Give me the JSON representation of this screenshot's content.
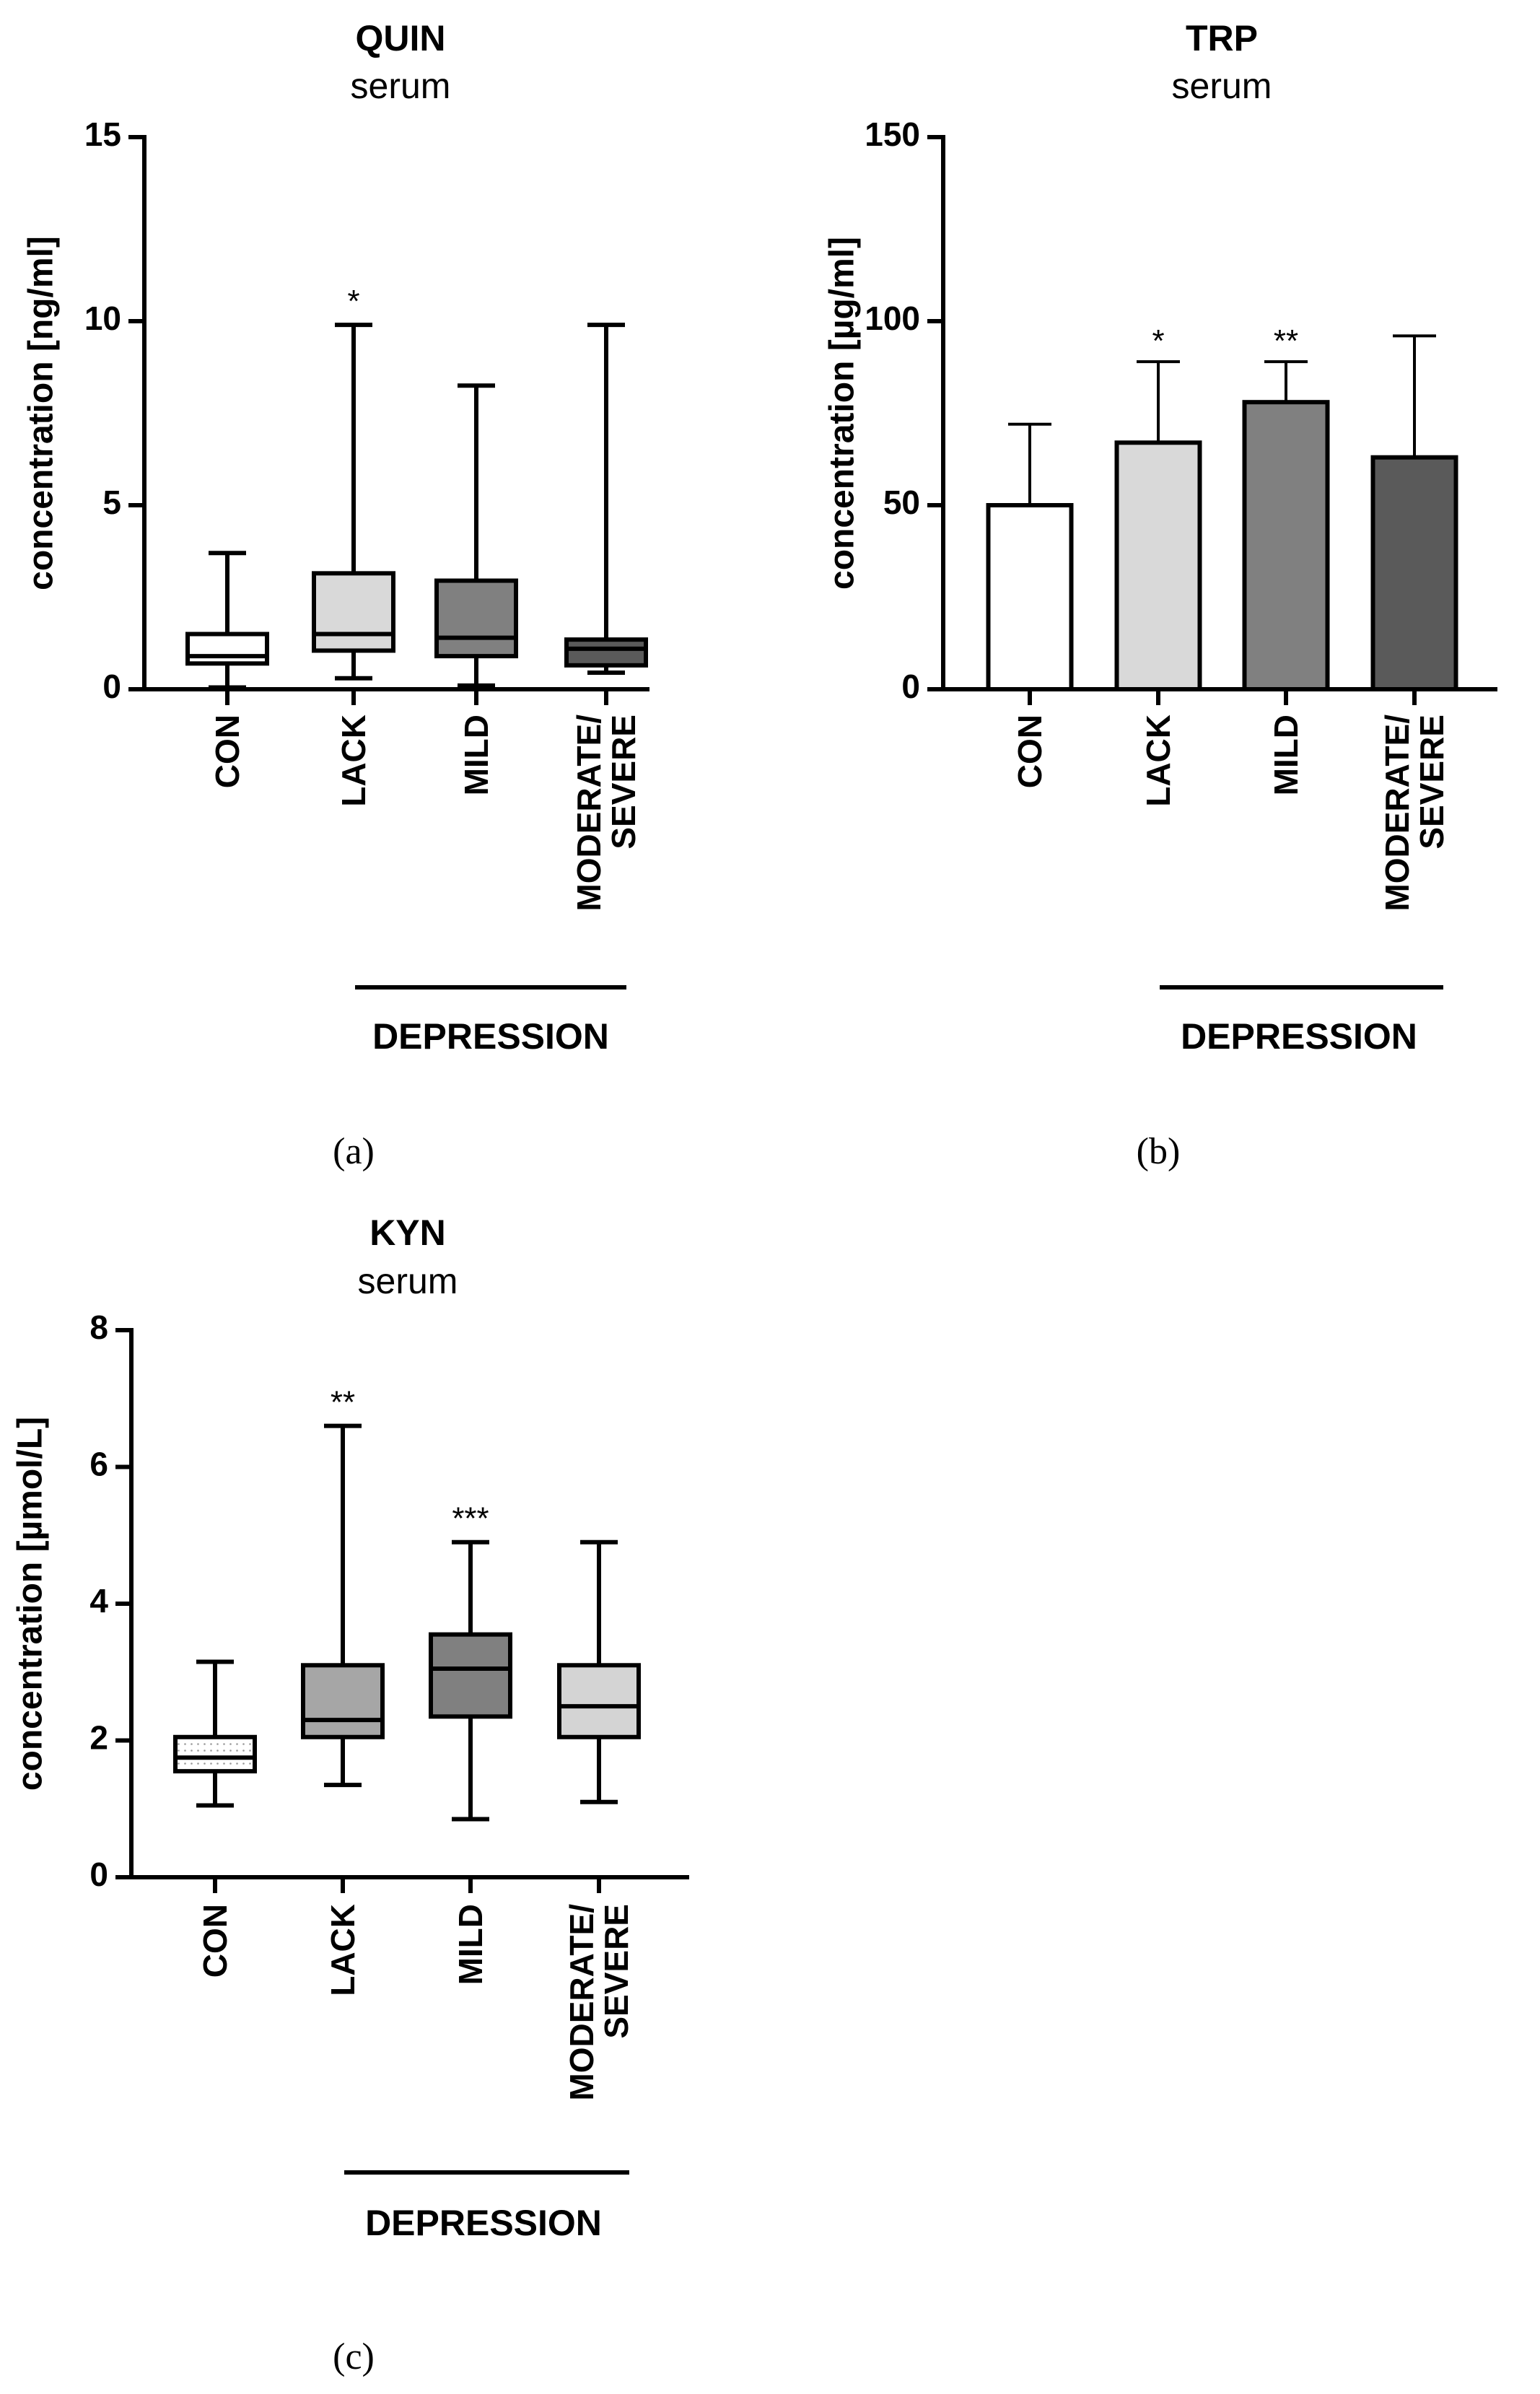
{
  "figure": {
    "panels": [
      {
        "id": "a",
        "label": "(a)"
      },
      {
        "id": "b",
        "label": "(b)"
      },
      {
        "id": "c",
        "label": "(c)"
      }
    ]
  },
  "chart_data": [
    {
      "panel": "a",
      "type": "box",
      "title": "QUIN",
      "subtitle": "serum",
      "ylabel": "concentration [ng/ml]",
      "ylim": [
        0,
        15
      ],
      "yticks": [
        0,
        5,
        10,
        15
      ],
      "group_label": "DEPRESSION",
      "grouped_categories": [
        1,
        3
      ],
      "categories": [
        "CON",
        "LACK",
        "MILD",
        "MODERATE/\nSEVERE"
      ],
      "series": [
        {
          "name": "CON",
          "min": 0.05,
          "q1": 0.7,
          "median": 0.9,
          "q3": 1.5,
          "max": 3.7,
          "color": "#ffffff",
          "annotation": ""
        },
        {
          "name": "LACK",
          "min": 0.3,
          "q1": 1.05,
          "median": 1.5,
          "q3": 3.15,
          "max": 9.9,
          "color": "#d9d9d9",
          "annotation": "*"
        },
        {
          "name": "MILD",
          "min": 0.1,
          "q1": 0.9,
          "median": 1.4,
          "q3": 2.95,
          "max": 8.25,
          "color": "#808080",
          "annotation": ""
        },
        {
          "name": "MODERATE/SEVERE",
          "min": 0.45,
          "q1": 0.65,
          "median": 1.1,
          "q3": 1.35,
          "max": 9.9,
          "color": "#5a5a5a",
          "annotation": ""
        }
      ]
    },
    {
      "panel": "b",
      "type": "bar",
      "title": "TRP",
      "subtitle": "serum",
      "ylabel": "concentration [µg/ml]",
      "ylim": [
        0,
        150
      ],
      "yticks": [
        0,
        50,
        100,
        150
      ],
      "group_label": "DEPRESSION",
      "grouped_categories": [
        1,
        3
      ],
      "categories": [
        "CON",
        "LACK",
        "MILD",
        "MODERATE/\nSEVERE"
      ],
      "series": [
        {
          "name": "CON",
          "value": 50,
          "error": 72,
          "color": "#ffffff",
          "annotation": ""
        },
        {
          "name": "LACK",
          "value": 67,
          "error": 89,
          "color": "#d9d9d9",
          "annotation": "*"
        },
        {
          "name": "MILD",
          "value": 78,
          "error": 89,
          "color": "#808080",
          "annotation": "**"
        },
        {
          "name": "MODERATE/SEVERE",
          "value": 63,
          "error": 96,
          "color": "#5a5a5a",
          "annotation": ""
        }
      ]
    },
    {
      "panel": "c",
      "type": "box",
      "title": "KYN",
      "subtitle": "serum",
      "ylabel": "concentration [µmol/L]",
      "ylim": [
        0,
        8
      ],
      "yticks": [
        0,
        2,
        4,
        6,
        8
      ],
      "group_label": "DEPRESSION",
      "grouped_categories": [
        1,
        3
      ],
      "categories": [
        "CON",
        "LACK",
        "MILD",
        "MODERATE/\nSEVERE"
      ],
      "series": [
        {
          "name": "CON",
          "min": 1.05,
          "q1": 1.55,
          "median": 1.75,
          "q3": 2.05,
          "max": 3.15,
          "color": "#ffffff",
          "pattern": "dotted",
          "annotation": ""
        },
        {
          "name": "LACK",
          "min": 1.35,
          "q1": 2.05,
          "median": 2.3,
          "q3": 3.1,
          "max": 6.6,
          "color": "#a6a6a6",
          "annotation": "**"
        },
        {
          "name": "MILD",
          "min": 0.85,
          "q1": 2.35,
          "median": 3.05,
          "q3": 3.55,
          "max": 4.9,
          "color": "#808080",
          "annotation": "***"
        },
        {
          "name": "MODERATE/SEVERE",
          "min": 1.1,
          "q1": 2.05,
          "median": 2.5,
          "q3": 3.1,
          "max": 4.9,
          "color": "#d4d4d4",
          "annotation": ""
        }
      ]
    }
  ]
}
